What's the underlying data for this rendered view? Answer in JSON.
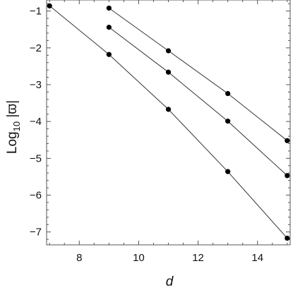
{
  "chart_data": {
    "type": "line",
    "x_ticks": [
      8,
      10,
      12,
      14
    ],
    "y_ticks": [
      -1,
      -2,
      -3,
      -4,
      -5,
      -6,
      -7
    ],
    "xlim": [
      6.9,
      15.1
    ],
    "ylim": [
      -7.35,
      -0.7
    ],
    "xlabel": "d",
    "ylabel": {
      "prefix": "Log",
      "subscript": "10",
      "suffix": " |ϖ|"
    },
    "grid": false,
    "legend": false,
    "series": [
      {
        "x": [
          9,
          11,
          13,
          15
        ],
        "y": [
          -0.92,
          -2.08,
          -3.24,
          -4.52
        ]
      },
      {
        "x": [
          9,
          11,
          13,
          15
        ],
        "y": [
          -1.44,
          -2.66,
          -3.99,
          -5.47
        ]
      },
      {
        "x": [
          7,
          9,
          11,
          13,
          15
        ],
        "y": [
          -0.86,
          -2.18,
          -3.67,
          -5.36,
          -7.17
        ]
      }
    ]
  }
}
